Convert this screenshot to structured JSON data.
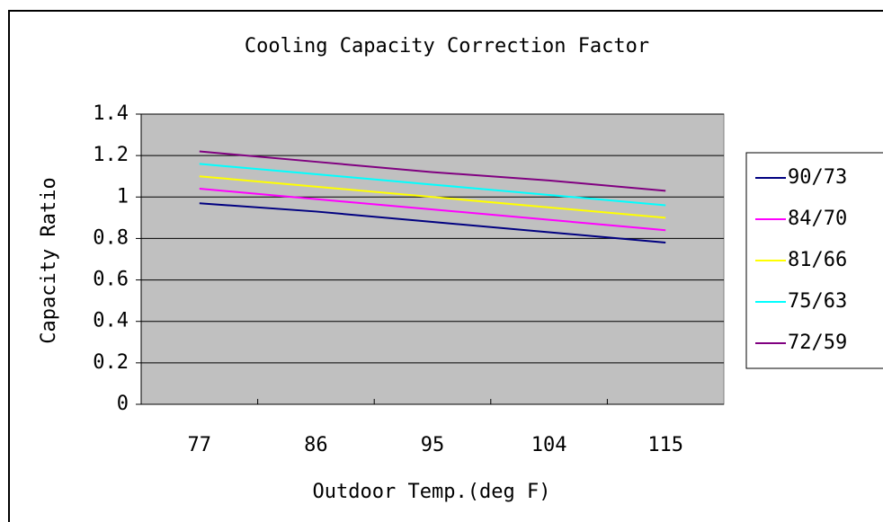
{
  "chart_data": {
    "type": "line",
    "title": "Cooling Capacity Correction Factor",
    "xlabel": "Outdoor Temp.(deg F)",
    "ylabel": "Capacity Ratio",
    "categories": [
      "77",
      "86",
      "95",
      "104",
      "115"
    ],
    "series": [
      {
        "name": "90/73",
        "color": "#000080",
        "values": [
          0.97,
          0.93,
          0.88,
          0.83,
          0.78
        ]
      },
      {
        "name": "84/70",
        "color": "#ff00ff",
        "values": [
          1.04,
          0.99,
          0.94,
          0.89,
          0.84
        ]
      },
      {
        "name": "81/66",
        "color": "#ffff00",
        "values": [
          1.1,
          1.05,
          1.0,
          0.95,
          0.9
        ]
      },
      {
        "name": "75/63",
        "color": "#00ffff",
        "values": [
          1.16,
          1.11,
          1.06,
          1.01,
          0.96
        ]
      },
      {
        "name": "72/59",
        "color": "#800080",
        "values": [
          1.22,
          1.17,
          1.12,
          1.08,
          1.03
        ]
      }
    ],
    "ylim": [
      0,
      1.4
    ],
    "yticks": [
      0,
      0.2,
      0.4,
      0.6,
      0.8,
      1,
      1.2,
      1.4
    ],
    "grid": true,
    "legend": "right"
  }
}
